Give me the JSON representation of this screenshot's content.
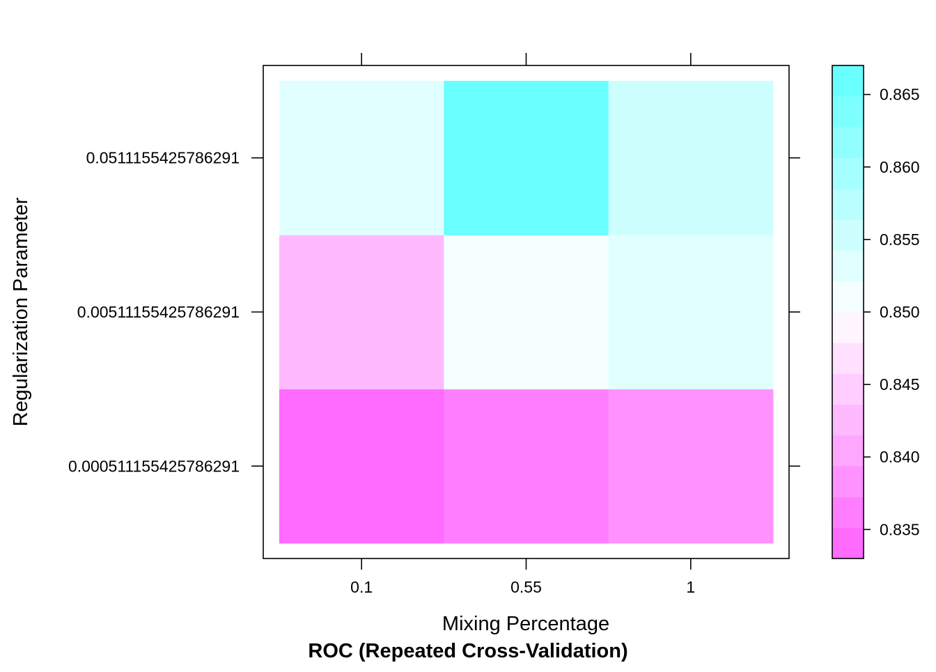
{
  "chart_data": {
    "type": "heatmap",
    "title": "",
    "xlabel": "Mixing Percentage",
    "ylabel": "Regularization Parameter",
    "caption": "ROC (Repeated Cross-Validation)",
    "x_categories": [
      "0.1",
      "0.55",
      "1"
    ],
    "y_categories": [
      "0.000511155425786291",
      "0.00511155425786291",
      "0.0511155425786291"
    ],
    "values": [
      [
        0.833,
        0.8365,
        0.838
      ],
      [
        0.8425,
        0.8505,
        0.8535
      ],
      [
        0.853,
        0.866,
        0.856
      ]
    ],
    "colorbar": {
      "min": 0.833,
      "max": 0.867,
      "ticks": [
        0.835,
        0.84,
        0.845,
        0.85,
        0.855,
        0.86,
        0.865
      ],
      "tick_labels": [
        "0.835",
        "0.840",
        "0.845",
        "0.850",
        "0.855",
        "0.860",
        "0.865"
      ],
      "low_color": "#ff60ff",
      "mid_color": "#ffffff",
      "high_color": "#60ffff",
      "n_bins": 16
    },
    "grid": false,
    "legend_position": "right"
  }
}
